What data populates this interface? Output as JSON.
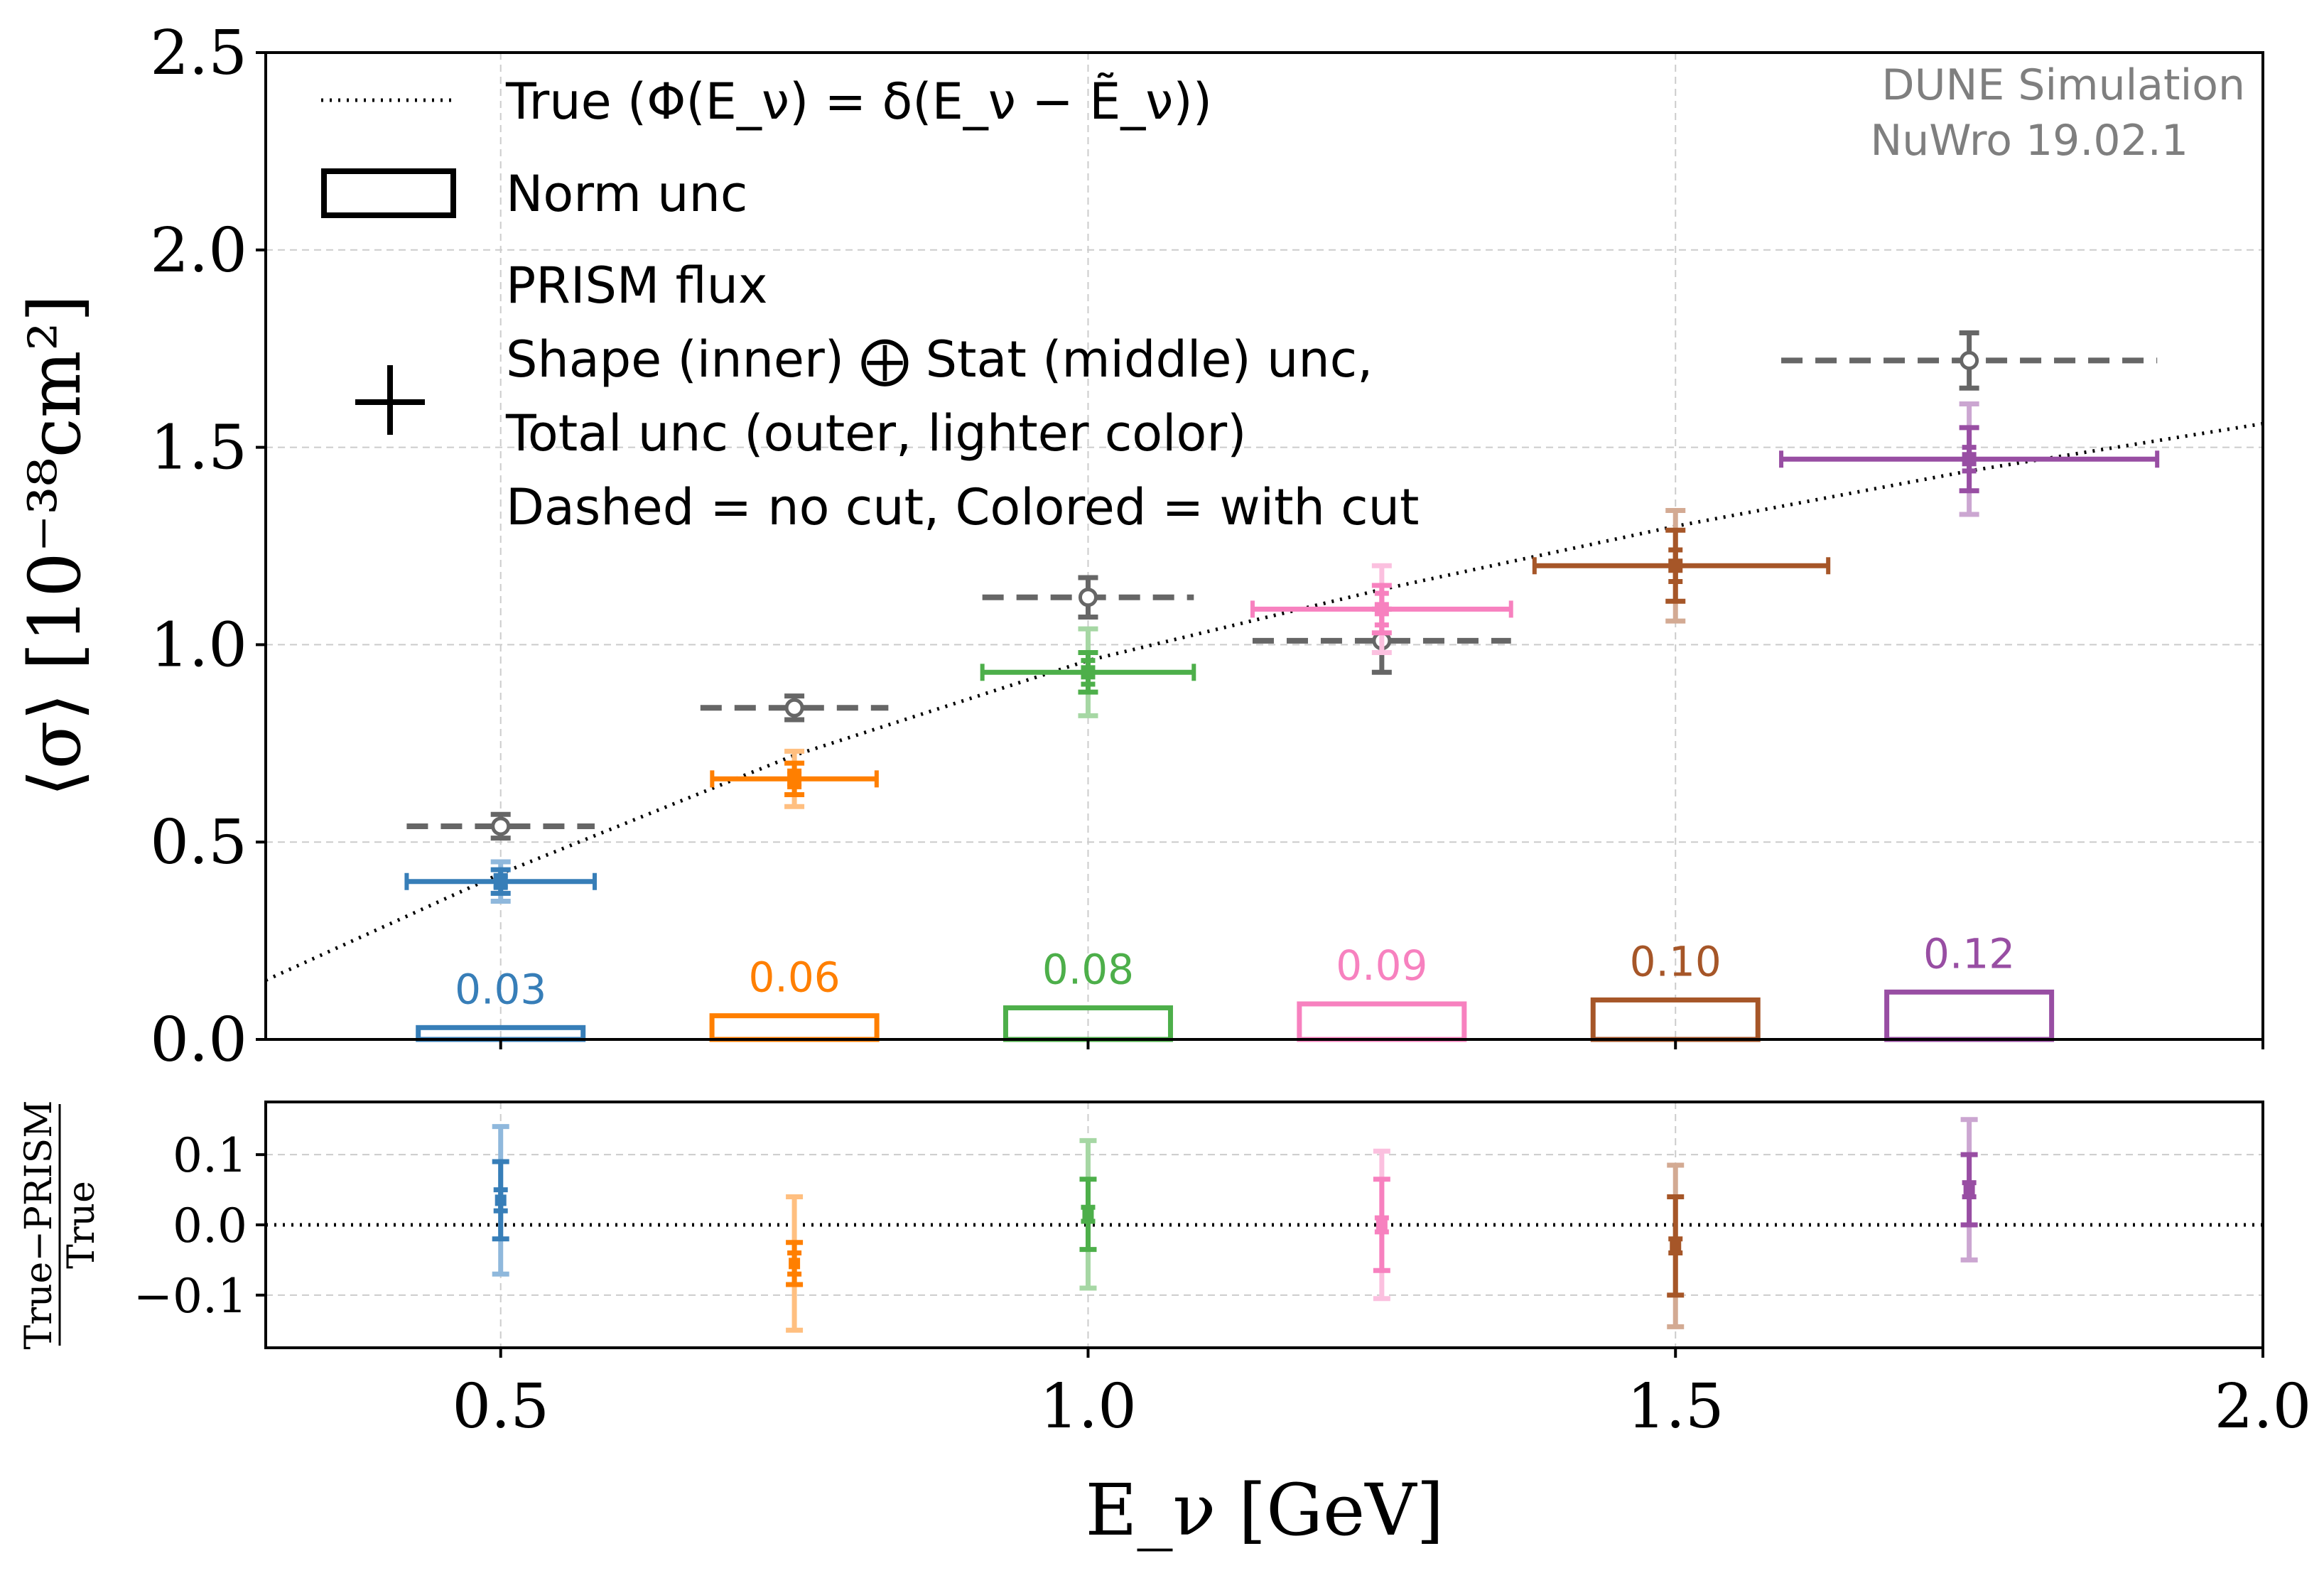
{
  "chart_data": {
    "type": "scatter",
    "main": {
      "xlabel": "E_ν [GeV]",
      "ylabel": "⟨σ⟩ [10⁻³⁸cm²]",
      "xlim": [
        0.3,
        2.0
      ],
      "ylim": [
        0.0,
        2.5
      ],
      "xticks": [
        "0.5",
        "1.0",
        "1.5",
        "2.0"
      ],
      "yticks": [
        "0.0",
        "0.5",
        "1.0",
        "1.5",
        "2.0",
        "2.5"
      ],
      "grid": true,
      "true_curve": {
        "label": "True (Φ(E_ν) = δ(E_ν − Ẽ_ν))",
        "x": [
          0.3,
          0.5,
          0.75,
          1.0,
          1.25,
          1.5,
          1.75,
          2.0
        ],
        "y": [
          0.15,
          0.42,
          0.72,
          0.96,
          1.14,
          1.3,
          1.44,
          1.56
        ]
      },
      "no_cut_points": [
        {
          "x": 0.5,
          "y": 0.54,
          "xlo": 0.42,
          "xhi": 0.58,
          "err": 0.03
        },
        {
          "x": 0.75,
          "y": 0.84,
          "xlo": 0.67,
          "xhi": 0.83,
          "err": 0.03
        },
        {
          "x": 1.0,
          "y": 1.12,
          "xlo": 0.91,
          "xhi": 1.09,
          "err": 0.05
        },
        {
          "x": 1.25,
          "y": 1.01,
          "xlo": 1.14,
          "xhi": 1.36,
          "err": 0.08
        },
        {
          "x": 1.75,
          "y": 1.72,
          "xlo": 1.59,
          "xhi": 1.91,
          "err": 0.07
        }
      ],
      "cut_points": [
        {
          "x": 0.5,
          "y": 0.4,
          "xlo": 0.42,
          "xhi": 0.58,
          "shape": 0.015,
          "stat": 0.03,
          "total": 0.05,
          "color": "#377eb8",
          "light": "#8fb8dc"
        },
        {
          "x": 0.75,
          "y": 0.66,
          "xlo": 0.68,
          "xhi": 0.82,
          "shape": 0.02,
          "stat": 0.04,
          "total": 0.07,
          "color": "#ff7f00",
          "light": "#ffbf80"
        },
        {
          "x": 1.0,
          "y": 0.93,
          "xlo": 0.91,
          "xhi": 1.09,
          "shape": 0.03,
          "stat": 0.05,
          "total": 0.11,
          "color": "#4daf4a",
          "light": "#a6d7a4"
        },
        {
          "x": 1.25,
          "y": 1.09,
          "xlo": 1.14,
          "xhi": 1.36,
          "shape": 0.04,
          "stat": 0.06,
          "total": 0.11,
          "color": "#f781bf",
          "light": "#fbc0df"
        },
        {
          "x": 1.5,
          "y": 1.2,
          "xlo": 1.38,
          "xhi": 1.63,
          "shape": 0.04,
          "stat": 0.09,
          "total": 0.14,
          "color": "#a65628",
          "light": "#d3aa93"
        },
        {
          "x": 1.75,
          "y": 1.47,
          "xlo": 1.59,
          "xhi": 1.91,
          "shape": 0.03,
          "stat": 0.08,
          "total": 0.14,
          "color": "#984ea3",
          "light": "#cba6d1"
        }
      ],
      "norm_unc": [
        {
          "x": 0.5,
          "value": 0.03,
          "label": "0.03",
          "color": "#377eb8"
        },
        {
          "x": 0.75,
          "value": 0.06,
          "label": "0.06",
          "color": "#ff7f00"
        },
        {
          "x": 1.0,
          "value": 0.08,
          "label": "0.08",
          "color": "#4daf4a"
        },
        {
          "x": 1.25,
          "value": 0.09,
          "label": "0.09",
          "color": "#f781bf"
        },
        {
          "x": 1.5,
          "value": 0.1,
          "label": "0.10",
          "color": "#a65628"
        },
        {
          "x": 1.75,
          "value": 0.12,
          "label": "0.12",
          "color": "#984ea3"
        }
      ],
      "no_cut_color": "#666666",
      "legend": {
        "placement": "top-left",
        "entries": [
          "True (Φ(E_ν) = δ(E_ν − Ẽ_ν))",
          "Norm unc",
          "PRISM flux",
          "Shape (inner) ⨁ Stat (middle) unc,",
          "Total unc (outer, lighter color)",
          "Dashed = no cut, Colored = with cut"
        ]
      },
      "watermark": [
        "DUNE Simulation",
        "NuWro 19.02.1"
      ]
    },
    "ratio": {
      "ylabel_num": "True−PRISM",
      "ylabel_den": "True",
      "ylim": [
        -0.175,
        0.175
      ],
      "yticks": [
        "−0.1",
        "0.0",
        "0.1"
      ],
      "points": [
        {
          "x": 0.5,
          "y": 0.035,
          "shape": 0.015,
          "stat": 0.055,
          "total": 0.105
        },
        {
          "x": 0.75,
          "y": -0.055,
          "shape": 0.015,
          "stat": 0.03,
          "total": 0.095
        },
        {
          "x": 1.0,
          "y": 0.015,
          "shape": 0.01,
          "stat": 0.05,
          "total": 0.105
        },
        {
          "x": 1.25,
          "y": 0.0,
          "shape": 0.01,
          "stat": 0.065,
          "total": 0.105
        },
        {
          "x": 1.5,
          "y": -0.03,
          "shape": 0.01,
          "stat": 0.07,
          "total": 0.115
        },
        {
          "x": 1.75,
          "y": 0.05,
          "shape": 0.01,
          "stat": 0.05,
          "total": 0.1
        }
      ]
    }
  }
}
